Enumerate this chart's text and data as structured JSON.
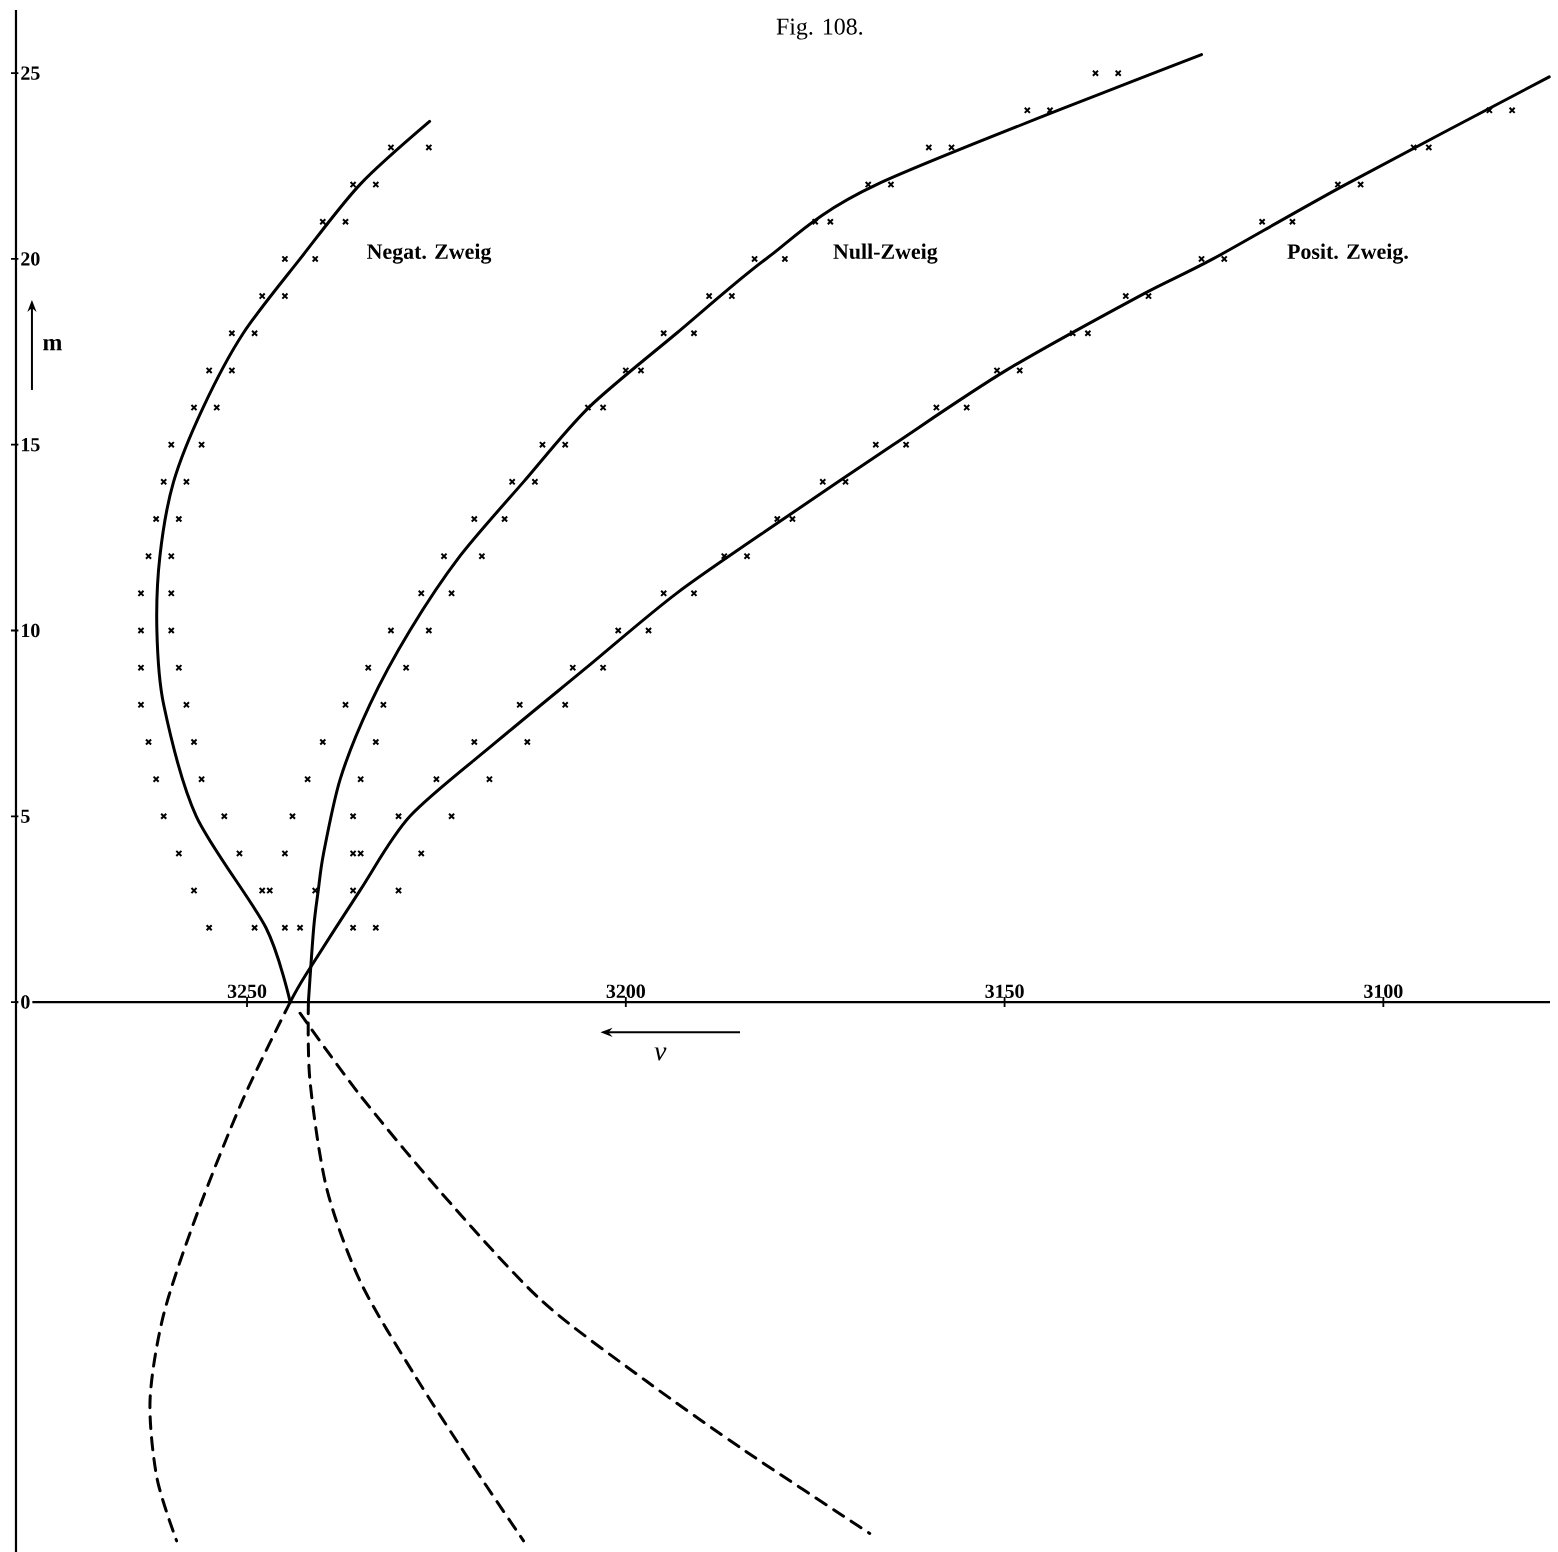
{
  "chart_data": {
    "type": "line",
    "title": "Fig. 108.",
    "xlabel": "ν",
    "ylabel": "m",
    "xlim": [
      3280.5,
      3078
    ],
    "ylim": [
      -14.8,
      26.7
    ],
    "xticks": [
      3250,
      3200,
      3150,
      3100
    ],
    "yticks": [
      0,
      5,
      10,
      15,
      20,
      25
    ],
    "series": [
      {
        "type": "scatter",
        "color": "#000000",
        "marker": "cross",
        "x": [
          3255,
          3249,
          3257,
          3248,
          3259,
          3251,
          3261,
          3253,
          3262,
          3256,
          3263,
          3257,
          3264,
          3258,
          3264,
          3259,
          3264,
          3260,
          3264,
          3260,
          3263,
          3260,
          3262,
          3259,
          3261,
          3258,
          3260,
          3256,
          3257,
          3254,
          3255,
          3252,
          3252,
          3249,
          3248,
          3245,
          3245,
          3241,
          3240,
          3237,
          3236,
          3233,
          3231,
          3226
        ],
        "values": [
          2,
          2,
          3,
          3,
          4,
          4,
          5,
          5,
          6,
          6,
          7,
          7,
          8,
          8,
          9,
          9,
          10,
          10,
          11,
          11,
          12,
          12,
          13,
          13,
          14,
          14,
          15,
          15,
          16,
          16,
          17,
          17,
          18,
          18,
          19,
          19,
          20,
          20,
          21,
          21,
          22,
          22,
          23,
          23
        ]
      },
      {
        "color": "#000000",
        "marker": "none",
        "line_style": "solid",
        "name": "Negat. Zweig",
        "x": [
          3244.3,
          3247.5,
          3256.7,
          3261,
          3261.9,
          3261.5,
          3259.7,
          3255.8,
          3250.5,
          3243,
          3235.1,
          3225.9
        ],
        "values": [
          0,
          2,
          5,
          8,
          10,
          12,
          14,
          16,
          18,
          20,
          22,
          23.7
        ]
      },
      {
        "color": "#000000",
        "marker": "none",
        "line_style": "dashed",
        "x": [
          3244.3,
          3250.5,
          3256.6,
          3261,
          3262.8,
          3261.9,
          3259.3
        ],
        "values": [
          0,
          -2.6,
          -5.7,
          -8.4,
          -10.7,
          -12.8,
          -14.5
        ]
      },
      {
        "type": "scatter",
        "color": "#000000",
        "marker": "cross",
        "x": [
          3245,
          3243,
          3247,
          3241,
          3245,
          3236,
          3244,
          3236,
          3242,
          3235,
          3240,
          3233,
          3237,
          3232,
          3234,
          3229,
          3231,
          3226,
          3227,
          3223,
          3224,
          3219,
          3220,
          3216,
          3215,
          3212,
          3211,
          3208,
          3205,
          3203,
          3200,
          3198,
          3195,
          3191,
          3189,
          3186,
          3183,
          3179,
          3175,
          3173,
          3168,
          3165,
          3160,
          3157,
          3147,
          3144,
          3138,
          3135
        ],
        "values": [
          2,
          2,
          3,
          3,
          4,
          4,
          5,
          5,
          6,
          6,
          7,
          7,
          8,
          8,
          9,
          9,
          10,
          10,
          11,
          11,
          12,
          12,
          13,
          13,
          14,
          14,
          15,
          15,
          16,
          16,
          17,
          17,
          18,
          18,
          19,
          19,
          20,
          20,
          21,
          21,
          22,
          22,
          23,
          23,
          24,
          24,
          25,
          25
        ]
      },
      {
        "color": "#000000",
        "marker": "none",
        "line_style": "solid",
        "name": "Null-Zweig",
        "x": [
          3241.9,
          3241.2,
          3240.6,
          3239.9,
          3237.7,
          3233.8,
          3228.5,
          3221.9,
          3213.5,
          3204.9,
          3193.3,
          3181.5,
          3166.9,
          3124
        ],
        "values": [
          0,
          2,
          3,
          4,
          6,
          8,
          10,
          12,
          14,
          16,
          18,
          20,
          22,
          25.5
        ]
      },
      {
        "color": "#000000",
        "marker": "none",
        "line_style": "dashed",
        "x": [
          3241.9,
          3241.7,
          3239.5,
          3235.1,
          3228,
          3220.1,
          3213.5
        ],
        "values": [
          0,
          -2.1,
          -5,
          -7.5,
          -10,
          -12.5,
          -14.5
        ]
      },
      {
        "type": "scatter",
        "color": "#000000",
        "marker": "cross",
        "x": [
          3236,
          3233,
          3236,
          3230,
          3235,
          3227,
          3230,
          3223,
          3225,
          3218,
          3220,
          3213,
          3214,
          3208,
          3207,
          3203,
          3201,
          3197,
          3195,
          3191,
          3187,
          3184,
          3180,
          3178,
          3174,
          3171,
          3167,
          3163,
          3159,
          3155,
          3151,
          3148,
          3141,
          3139,
          3134,
          3131,
          3124,
          3121,
          3116,
          3112,
          3106,
          3103,
          3096,
          3094,
          3086,
          3083
        ],
        "values": [
          2,
          2,
          3,
          3,
          4,
          4,
          5,
          5,
          6,
          6,
          7,
          7,
          8,
          8,
          9,
          9,
          10,
          10,
          11,
          11,
          12,
          12,
          13,
          13,
          14,
          14,
          15,
          15,
          16,
          16,
          17,
          17,
          18,
          18,
          19,
          19,
          20,
          20,
          21,
          21,
          22,
          22,
          23,
          23,
          24,
          24
        ]
      },
      {
        "color": "#000000",
        "marker": "none",
        "line_style": "solid",
        "name": "Posit. Zweig.",
        "x": [
          3244.3,
          3242.2,
          3235.1,
          3228.5,
          3217.1,
          3205.2,
          3193.3,
          3179.2,
          3164.7,
          3149.8,
          3132.2,
          3122.5,
          3105,
          3078.1
        ],
        "values": [
          0,
          0.75,
          3,
          5,
          7,
          9,
          11,
          13,
          15,
          17,
          19,
          20,
          22,
          24.9
        ]
      },
      {
        "color": "#000000",
        "marker": "none",
        "line_style": "dashed",
        "x": [
          3243,
          3235.1,
          3224.5,
          3211.3,
          3197.3,
          3184.1,
          3167.8
        ],
        "values": [
          -0.3,
          -2.5,
          -5.1,
          -8,
          -10.2,
          -12.1,
          -14.3
        ]
      }
    ]
  }
}
